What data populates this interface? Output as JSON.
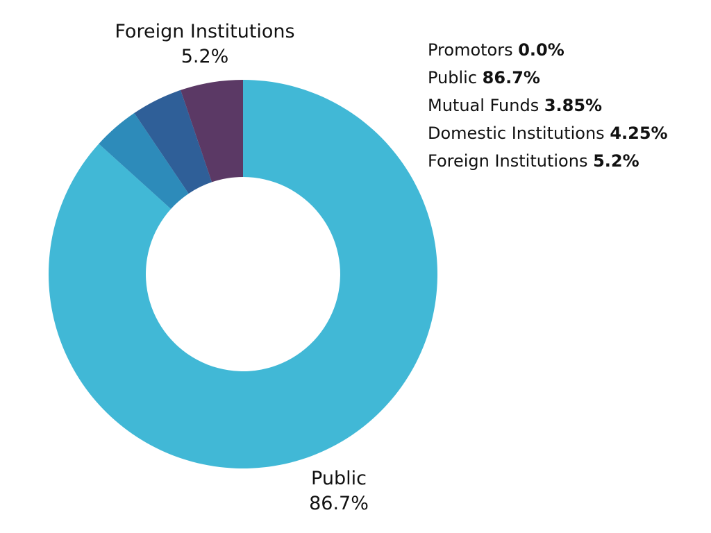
{
  "chart_data": {
    "type": "pie",
    "variant": "donut",
    "slices": [
      {
        "label": "Promotors",
        "value": 0.0,
        "value_text": "0.0%",
        "color": "#5B3965"
      },
      {
        "label": "Public",
        "value": 86.7,
        "value_text": "86.7%",
        "color": "#41B8D6"
      },
      {
        "label": "Mutual Funds",
        "value": 3.85,
        "value_text": "3.85%",
        "color": "#2D8BBA"
      },
      {
        "label": "Domestic Institutions",
        "value": 4.25,
        "value_text": "4.25%",
        "color": "#2F5F98"
      },
      {
        "label": "Foreign Institutions",
        "value": 5.2,
        "value_text": "5.2%",
        "color": "#5B3965"
      }
    ],
    "slice_labels": {
      "foreign": {
        "name": "Foreign Institutions",
        "value": "5.2%"
      },
      "public": {
        "name": "Public",
        "value": "86.7%"
      }
    },
    "legend": {
      "placement": "top-right",
      "items": [
        {
          "label": "Promotors ",
          "value": "0.0%"
        },
        {
          "label": "Public",
          "value": "86.7%"
        },
        {
          "label": "Mutual Funds",
          "value": "3.85%"
        },
        {
          "label": "Domestic Institutions",
          "value": "4.25%"
        },
        {
          "label": "Foreign Institutions",
          "value": "5.2%"
        }
      ]
    }
  }
}
